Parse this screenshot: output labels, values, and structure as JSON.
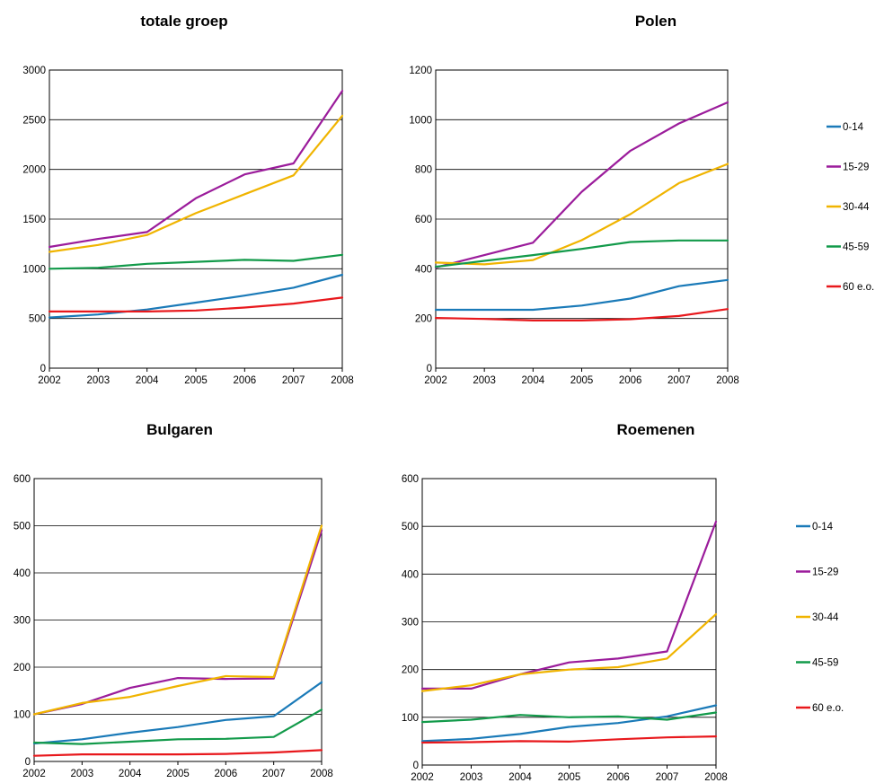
{
  "colors": {
    "0-14": "#1a7ab8",
    "15-29": "#9b1c9b",
    "30-44": "#f0b400",
    "45-59": "#129a4a",
    "60 e.o.": "#e8181c"
  },
  "chart_data": [
    {
      "type": "line",
      "title": "totale groep",
      "x": [
        "2002",
        "2003",
        "2004",
        "2005",
        "2006",
        "2007",
        "2008"
      ],
      "ylim": [
        0,
        3000
      ],
      "yticks": [
        0,
        500,
        1000,
        1500,
        2000,
        2500,
        3000
      ],
      "grid": true,
      "legend": "none",
      "series": [
        {
          "name": "0-14",
          "color": "#1a7ab8",
          "values": [
            510,
            540,
            590,
            660,
            730,
            810,
            940
          ]
        },
        {
          "name": "15-29",
          "color": "#9b1c9b",
          "values": [
            1220,
            1300,
            1370,
            1710,
            1950,
            2060,
            2790
          ]
        },
        {
          "name": "30-44",
          "color": "#f0b400",
          "values": [
            1170,
            1240,
            1340,
            1560,
            1750,
            1940,
            2540
          ]
        },
        {
          "name": "45-59",
          "color": "#129a4a",
          "values": [
            1000,
            1010,
            1050,
            1070,
            1090,
            1080,
            1140
          ]
        },
        {
          "name": "60 e.o.",
          "color": "#e8181c",
          "values": [
            570,
            570,
            570,
            580,
            610,
            650,
            710
          ]
        }
      ]
    },
    {
      "type": "line",
      "title": "Polen",
      "x": [
        "2002",
        "2003",
        "2004",
        "2005",
        "2006",
        "2007",
        "2008"
      ],
      "ylim": [
        0,
        1200
      ],
      "yticks": [
        0,
        200,
        400,
        600,
        800,
        1000,
        1200
      ],
      "grid": true,
      "legend": "right",
      "series": [
        {
          "name": "0-14",
          "color": "#1a7ab8",
          "values": [
            235,
            235,
            235,
            252,
            280,
            330,
            355
          ]
        },
        {
          "name": "15-29",
          "color": "#9b1c9b",
          "values": [
            405,
            455,
            505,
            710,
            875,
            985,
            1070
          ]
        },
        {
          "name": "30-44",
          "color": "#f0b400",
          "values": [
            425,
            418,
            435,
            515,
            620,
            745,
            822
          ]
        },
        {
          "name": "45-59",
          "color": "#129a4a",
          "values": [
            408,
            432,
            455,
            480,
            508,
            514,
            514
          ]
        },
        {
          "name": "60 e.o.",
          "color": "#e8181c",
          "values": [
            202,
            198,
            192,
            192,
            197,
            210,
            238
          ]
        }
      ]
    },
    {
      "type": "line",
      "title": "Bulgaren",
      "x": [
        "2002",
        "2003",
        "2004",
        "2005",
        "2006",
        "2007",
        "2008"
      ],
      "ylim": [
        0,
        600
      ],
      "yticks": [
        0,
        100,
        200,
        300,
        400,
        500,
        600
      ],
      "grid": true,
      "legend": "none",
      "series": [
        {
          "name": "0-14",
          "color": "#1a7ab8",
          "values": [
            38,
            47,
            61,
            73,
            88,
            96,
            168
          ]
        },
        {
          "name": "15-29",
          "color": "#9b1c9b",
          "values": [
            100,
            122,
            156,
            177,
            175,
            176,
            490
          ]
        },
        {
          "name": "30-44",
          "color": "#f0b400",
          "values": [
            100,
            124,
            137,
            160,
            181,
            179,
            500
          ]
        },
        {
          "name": "45-59",
          "color": "#129a4a",
          "values": [
            40,
            37,
            42,
            47,
            48,
            52,
            110
          ]
        },
        {
          "name": "60 e.o.",
          "color": "#e8181c",
          "values": [
            12,
            15,
            15,
            15,
            16,
            19,
            24
          ]
        }
      ]
    },
    {
      "type": "line",
      "title": "Roemenen",
      "x": [
        "2002",
        "2003",
        "2004",
        "2005",
        "2006",
        "2007",
        "2008"
      ],
      "ylim": [
        0,
        600
      ],
      "yticks": [
        0,
        100,
        200,
        300,
        400,
        500,
        600
      ],
      "grid": true,
      "legend": "right",
      "series": [
        {
          "name": "0-14",
          "color": "#1a7ab8",
          "values": [
            50,
            55,
            65,
            80,
            88,
            102,
            125
          ]
        },
        {
          "name": "15-29",
          "color": "#9b1c9b",
          "values": [
            160,
            160,
            190,
            215,
            223,
            238,
            510
          ]
        },
        {
          "name": "30-44",
          "color": "#f0b400",
          "values": [
            155,
            167,
            190,
            200,
            205,
            223,
            316
          ]
        },
        {
          "name": "45-59",
          "color": "#129a4a",
          "values": [
            90,
            95,
            105,
            100,
            102,
            95,
            110
          ]
        },
        {
          "name": "60 e.o.",
          "color": "#e8181c",
          "values": [
            47,
            48,
            50,
            49,
            54,
            58,
            60
          ]
        }
      ]
    }
  ]
}
